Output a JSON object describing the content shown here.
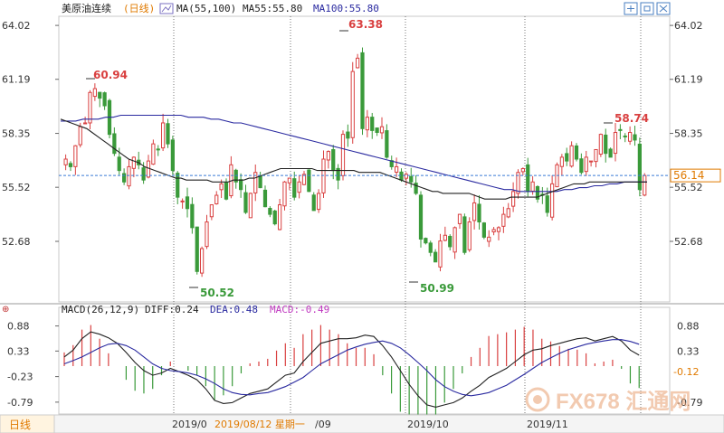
{
  "header": {
    "symbol": "美原油连续",
    "period": "(日线)",
    "ma_label": "MA(55,100)",
    "ma55": "MA55:55.80",
    "ma100": "MA100:55.80"
  },
  "macd_header": {
    "label": "MACD(26,12,9)",
    "diff": "DIFF:0.24",
    "dea": "DEA:0.48",
    "macd": "MACD:-0.49"
  },
  "bottom_bar": {
    "tab": "日线",
    "dates": [
      "2019/0",
      "2019/08/12 星期一",
      "/09",
      "2019/10",
      "2019/11"
    ]
  },
  "watermark": "FX678 汇通网",
  "colors": {
    "up": "#d94040",
    "down": "#3a9a3a",
    "ma55": "#222222",
    "ma100": "#2a2aa0",
    "current_line": "#3a7bd5",
    "current_label": "#e07a00"
  },
  "chart_data": [
    {
      "type": "candlestick",
      "title": "美原油连续(日线)",
      "ylim": [
        49.5,
        64.5
      ],
      "y_ticks": [
        64.02,
        61.19,
        58.35,
        55.52,
        52.68
      ],
      "right_ticks": [
        64.02,
        61.19,
        58.35,
        55.52,
        52.68
      ],
      "current_price": 56.14,
      "annotations": [
        {
          "label": "60.94",
          "kind": "high"
        },
        {
          "label": "50.52",
          "kind": "low"
        },
        {
          "label": "63.38",
          "kind": "high"
        },
        {
          "label": "50.99",
          "kind": "low"
        },
        {
          "label": "58.74",
          "kind": "high"
        }
      ],
      "x_labels": [
        "2019/08",
        "2019/09",
        "2019/10",
        "2019/11"
      ],
      "closes": [
        57.0,
        56.6,
        57.7,
        58.7,
        58.9,
        60.5,
        60.7,
        60.2,
        59.8,
        58.3,
        57.3,
        56.4,
        55.8,
        56.6,
        57.1,
        56.7,
        55.9,
        56.9,
        57.8,
        57.5,
        58.9,
        57.8,
        56.4,
        55.0,
        54.8,
        54.4,
        53.4,
        51.1,
        52.3,
        53.7,
        54.6,
        55.1,
        55.7,
        54.9,
        56.7,
        55.8,
        55.4,
        54.2,
        55.2,
        56.3,
        55.5,
        54.5,
        54.1,
        53.6,
        54.6,
        55.8,
        56.0,
        55.0,
        55.8,
        56.2,
        55.3,
        54.3,
        55.2,
        57.0,
        57.4,
        56.4,
        55.9,
        58.3,
        58.1,
        61.6,
        62.3,
        58.6,
        59.2,
        58.5,
        58.4,
        58.7,
        57.1,
        56.6,
        56.6,
        55.9,
        56.2,
        55.8,
        55.2,
        52.8,
        52.6,
        52.1,
        51.6,
        52.7,
        53.0,
        52.4,
        53.4,
        54.1,
        52.1,
        53.7,
        54.7,
        53.7,
        52.9,
        52.9,
        53.3,
        53.4,
        54.1,
        54.4,
        55.3,
        56.3,
        56.5,
        55.3,
        55.8,
        54.9,
        55.1,
        54.2,
        55.7,
        56.7,
        57.1,
        56.9,
        57.7,
        57.0,
        56.3,
        57.1,
        56.9,
        57.5,
        58.3,
        57.3,
        57.1,
        58.4,
        58.5,
        58.2,
        58.4,
        58.0,
        55.4,
        56.14
      ],
      "ma55": [
        59.1,
        59.0,
        58.9,
        58.8,
        58.7,
        58.6,
        58.4,
        58.2,
        58.0,
        57.8,
        57.6,
        57.4,
        57.2,
        57.0,
        56.9,
        56.8,
        56.6,
        56.5,
        56.4,
        56.3,
        56.2,
        56.1,
        56.0,
        56.0,
        55.9,
        55.9,
        55.9,
        55.9,
        55.9,
        55.8,
        55.8,
        55.8,
        55.8,
        55.9,
        55.9,
        55.9,
        56.0,
        56.0,
        56.1,
        56.2,
        56.3,
        56.4,
        56.5,
        56.5,
        56.5,
        56.5,
        56.5,
        56.5,
        56.5,
        56.4,
        56.4,
        56.4,
        56.4,
        56.4,
        56.4,
        56.4,
        56.4,
        56.3,
        56.3,
        56.3,
        56.3,
        56.3,
        56.2,
        56.1,
        56.0,
        55.9,
        55.8,
        55.7,
        55.6,
        55.5,
        55.4,
        55.3,
        55.3,
        55.2,
        55.2,
        55.2,
        55.2,
        55.2,
        55.2,
        55.1,
        55.0,
        54.9,
        54.9,
        54.9,
        54.9,
        54.9,
        55.0,
        55.0,
        55.0,
        55.0,
        55.0,
        55.0,
        55.1,
        55.2,
        55.3,
        55.4,
        55.5,
        55.6,
        55.7,
        55.7,
        55.7,
        55.8,
        55.8,
        55.8,
        55.8,
        55.8,
        55.8,
        55.8,
        55.8,
        55.8,
        55.8,
        55.8,
        55.8
      ],
      "ma100": [
        59.0,
        59.0,
        59.0,
        59.1,
        59.1,
        59.1,
        59.2,
        59.2,
        59.3,
        59.3,
        59.3,
        59.3,
        59.3,
        59.3,
        59.3,
        59.3,
        59.3,
        59.2,
        59.2,
        59.2,
        59.1,
        59.1,
        59.0,
        58.9,
        58.9,
        58.8,
        58.7,
        58.6,
        58.5,
        58.4,
        58.3,
        58.2,
        58.1,
        58.0,
        57.9,
        57.8,
        57.7,
        57.6,
        57.5,
        57.4,
        57.3,
        57.2,
        57.1,
        57.0,
        56.9,
        56.8,
        56.7,
        56.6,
        56.5,
        56.4,
        56.3,
        56.2,
        56.1,
        56.0,
        55.9,
        55.8,
        55.7,
        55.6,
        55.5,
        55.4,
        55.4,
        55.3,
        55.3,
        55.3,
        55.3,
        55.3,
        55.3,
        55.4,
        55.4,
        55.5,
        55.5,
        55.6,
        55.6,
        55.7,
        55.7,
        55.8,
        55.8,
        55.8,
        55.8
      ]
    },
    {
      "type": "macd",
      "title": "MACD(26,12,9)",
      "ylim": [
        -1.05,
        1.05
      ],
      "y_ticks": [
        0.88,
        0.33,
        -0.23,
        -0.79
      ],
      "right_ticks": [
        0.88,
        0.33,
        -0.79
      ],
      "current_value": -0.12,
      "diff": [
        0.2,
        0.35,
        0.6,
        0.75,
        0.7,
        0.62,
        0.5,
        0.3,
        0.08,
        -0.1,
        -0.2,
        -0.15,
        -0.05,
        -0.12,
        -0.2,
        -0.3,
        -0.5,
        -0.75,
        -0.82,
        -0.8,
        -0.7,
        -0.6,
        -0.55,
        -0.5,
        -0.35,
        -0.2,
        -0.15,
        0.1,
        0.3,
        0.5,
        0.55,
        0.6,
        0.6,
        0.62,
        0.68,
        0.65,
        0.45,
        0.2,
        -0.1,
        -0.4,
        -0.65,
        -0.85,
        -0.9,
        -0.85,
        -0.8,
        -0.7,
        -0.55,
        -0.42,
        -0.25,
        -0.15,
        -0.05,
        0.1,
        0.25,
        0.35,
        0.38,
        0.45,
        0.5,
        0.55,
        0.6,
        0.62,
        0.55,
        0.6,
        0.65,
        0.55,
        0.35,
        0.24
      ],
      "dea": [
        0.05,
        0.12,
        0.2,
        0.3,
        0.4,
        0.48,
        0.5,
        0.45,
        0.35,
        0.2,
        0.05,
        -0.05,
        -0.1,
        -0.12,
        -0.15,
        -0.2,
        -0.28,
        -0.38,
        -0.5,
        -0.58,
        -0.62,
        -0.63,
        -0.6,
        -0.58,
        -0.52,
        -0.45,
        -0.35,
        -0.25,
        -0.1,
        0.05,
        0.15,
        0.25,
        0.35,
        0.42,
        0.48,
        0.52,
        0.55,
        0.5,
        0.4,
        0.25,
        0.08,
        -0.1,
        -0.3,
        -0.45,
        -0.55,
        -0.62,
        -0.65,
        -0.62,
        -0.58,
        -0.5,
        -0.42,
        -0.3,
        -0.18,
        -0.05,
        0.08,
        0.18,
        0.28,
        0.36,
        0.42,
        0.48,
        0.52,
        0.55,
        0.58,
        0.58,
        0.54,
        0.48
      ],
      "histogram_current": -0.49
    }
  ]
}
